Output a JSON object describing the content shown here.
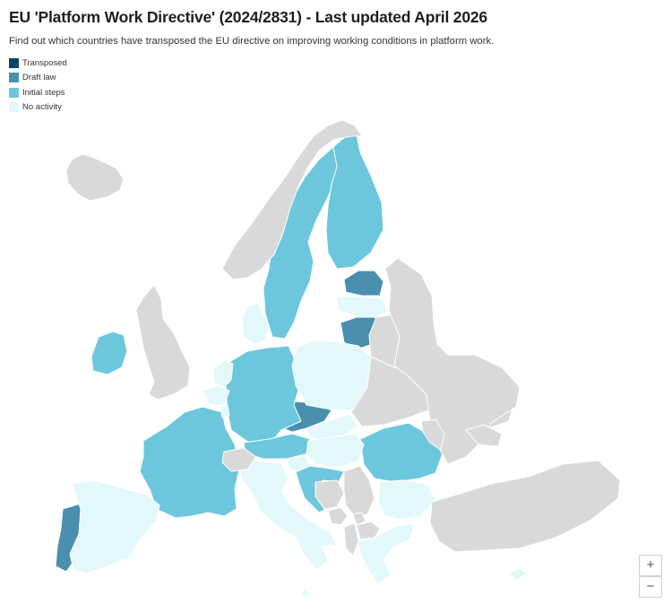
{
  "header": {
    "title": "EU 'Platform Work Directive' (2024/2831) - Last updated April 2026",
    "subtitle": "Find out which countries have transposed the EU directive on improving working conditions in platform work."
  },
  "legend": [
    {
      "label": "Transposed",
      "color": "#0e4466"
    },
    {
      "label": "Draft law",
      "color": "#4a8fae"
    },
    {
      "label": "Initial steps",
      "color": "#6cc7dc"
    },
    {
      "label": "No activity",
      "color": "#e2f8fb"
    }
  ],
  "colors": {
    "non_eu": "#d9d9d9",
    "border": "#ffffff"
  },
  "zoom": {
    "in_label": "+",
    "out_label": "−"
  },
  "map": {
    "countries": [
      {
        "name": "Portugal",
        "status": "Draft law"
      },
      {
        "name": "Lithuania",
        "status": "Draft law"
      },
      {
        "name": "Czechia",
        "status": "Draft law"
      },
      {
        "name": "Estonia",
        "status": "Draft law"
      },
      {
        "name": "France",
        "status": "Initial steps"
      },
      {
        "name": "Germany",
        "status": "Initial steps"
      },
      {
        "name": "Austria",
        "status": "Initial steps"
      },
      {
        "name": "Croatia",
        "status": "Initial steps"
      },
      {
        "name": "Romania",
        "status": "Initial steps"
      },
      {
        "name": "Ireland",
        "status": "Initial steps"
      },
      {
        "name": "Sweden",
        "status": "Initial steps"
      },
      {
        "name": "Finland",
        "status": "Initial steps"
      },
      {
        "name": "Spain",
        "status": "No activity"
      },
      {
        "name": "Italy",
        "status": "No activity"
      },
      {
        "name": "Poland",
        "status": "No activity"
      },
      {
        "name": "Denmark",
        "status": "No activity"
      },
      {
        "name": "Latvia",
        "status": "No activity"
      },
      {
        "name": "Netherlands",
        "status": "No activity"
      },
      {
        "name": "Belgium",
        "status": "No activity"
      },
      {
        "name": "Luxembourg",
        "status": "No activity"
      },
      {
        "name": "Slovakia",
        "status": "No activity"
      },
      {
        "name": "Hungary",
        "status": "No activity"
      },
      {
        "name": "Slovenia",
        "status": "No activity"
      },
      {
        "name": "Bulgaria",
        "status": "No activity"
      },
      {
        "name": "Greece",
        "status": "No activity"
      },
      {
        "name": "Cyprus",
        "status": "No activity"
      },
      {
        "name": "Malta",
        "status": "No activity"
      },
      {
        "name": "Norway",
        "status": "Non-EU"
      },
      {
        "name": "United Kingdom",
        "status": "Non-EU"
      },
      {
        "name": "Iceland",
        "status": "Non-EU"
      },
      {
        "name": "Switzerland",
        "status": "Non-EU"
      },
      {
        "name": "Belarus",
        "status": "Non-EU"
      },
      {
        "name": "Ukraine",
        "status": "Non-EU"
      },
      {
        "name": "Russia",
        "status": "Non-EU"
      },
      {
        "name": "Turkey",
        "status": "Non-EU"
      },
      {
        "name": "Serbia",
        "status": "Non-EU"
      },
      {
        "name": "Bosnia and Herzegovina",
        "status": "Non-EU"
      },
      {
        "name": "Montenegro",
        "status": "Non-EU"
      },
      {
        "name": "North Macedonia",
        "status": "Non-EU"
      },
      {
        "name": "Albania",
        "status": "Non-EU"
      },
      {
        "name": "Moldova",
        "status": "Non-EU"
      },
      {
        "name": "Georgia",
        "status": "Non-EU"
      },
      {
        "name": "Kosovo",
        "status": "Non-EU"
      }
    ]
  }
}
